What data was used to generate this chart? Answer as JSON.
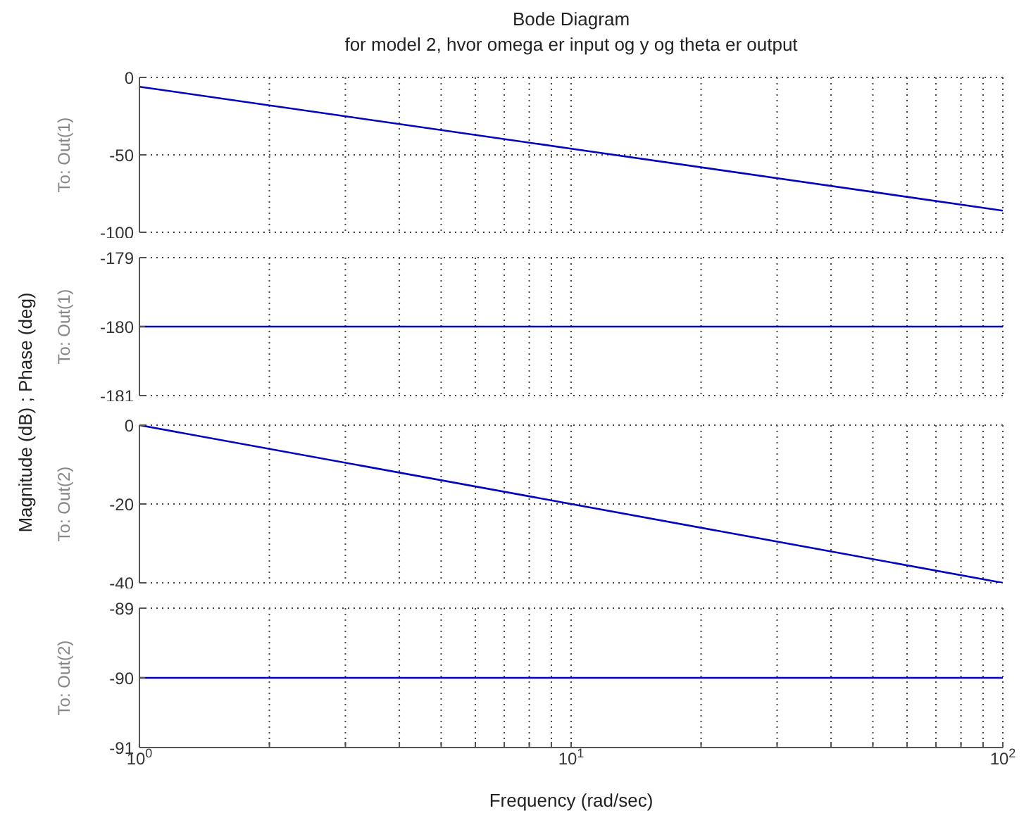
{
  "chart_data": [
    {
      "type": "line",
      "title": "Bode Diagram",
      "subtitle": "for model 2, hvor omega er input og y og theta er output",
      "annotations": [
        "Magnitude (dB) ; Phase (deg)"
      ],
      "ylabel": "To: Out(1)",
      "x": [
        1,
        10,
        100
      ],
      "series": [
        {
          "color": "#0000c0",
          "values": [
            -6,
            -46,
            -86
          ]
        }
      ],
      "log": "x",
      "xlim": [
        1,
        100
      ],
      "xticks": [
        {
          "value": 1,
          "label": null
        },
        {
          "value": 2,
          "label": null
        },
        {
          "value": 3,
          "label": null
        },
        {
          "value": 4,
          "label": null
        },
        {
          "value": 5,
          "label": null
        },
        {
          "value": 6,
          "label": null
        },
        {
          "value": 7,
          "label": null
        },
        {
          "value": 8,
          "label": null
        },
        {
          "value": 9,
          "label": null
        },
        {
          "value": 10,
          "label": null
        },
        {
          "value": 20,
          "label": null
        },
        {
          "value": 30,
          "label": null
        },
        {
          "value": 40,
          "label": null
        },
        {
          "value": 50,
          "label": null
        },
        {
          "value": 60,
          "label": null
        },
        {
          "value": 70,
          "label": null
        },
        {
          "value": 80,
          "label": null
        },
        {
          "value": 90,
          "label": null
        },
        {
          "value": 100,
          "label": null
        }
      ],
      "ylim": [
        -100,
        0
      ],
      "yticks": [
        -100,
        -50,
        0
      ],
      "grid": true,
      "tick_labels": "y"
    },
    {
      "type": "line",
      "ylabel": "To: Out(1)",
      "x": [
        1,
        100
      ],
      "series": [
        {
          "color": "#0000c0",
          "values": [
            -180,
            -180
          ]
        }
      ],
      "log": "x",
      "xlim": [
        1,
        100
      ],
      "xticks": [
        {
          "value": 1,
          "label": null
        },
        {
          "value": 2,
          "label": null
        },
        {
          "value": 3,
          "label": null
        },
        {
          "value": 4,
          "label": null
        },
        {
          "value": 5,
          "label": null
        },
        {
          "value": 6,
          "label": null
        },
        {
          "value": 7,
          "label": null
        },
        {
          "value": 8,
          "label": null
        },
        {
          "value": 9,
          "label": null
        },
        {
          "value": 10,
          "label": null
        },
        {
          "value": 20,
          "label": null
        },
        {
          "value": 30,
          "label": null
        },
        {
          "value": 40,
          "label": null
        },
        {
          "value": 50,
          "label": null
        },
        {
          "value": 60,
          "label": null
        },
        {
          "value": 70,
          "label": null
        },
        {
          "value": 80,
          "label": null
        },
        {
          "value": 90,
          "label": null
        },
        {
          "value": 100,
          "label": null
        }
      ],
      "ylim": [
        -181,
        -179
      ],
      "yticks": [
        -181,
        -180,
        -179
      ],
      "grid": true,
      "tick_labels": "y"
    },
    {
      "type": "line",
      "ylabel": "To: Out(2)",
      "x": [
        1,
        10,
        100
      ],
      "series": [
        {
          "color": "#0000c0",
          "values": [
            0,
            -20,
            -40
          ]
        }
      ],
      "log": "x",
      "xlim": [
        1,
        100
      ],
      "xticks": [
        {
          "value": 1,
          "label": null
        },
        {
          "value": 2,
          "label": null
        },
        {
          "value": 3,
          "label": null
        },
        {
          "value": 4,
          "label": null
        },
        {
          "value": 5,
          "label": null
        },
        {
          "value": 6,
          "label": null
        },
        {
          "value": 7,
          "label": null
        },
        {
          "value": 8,
          "label": null
        },
        {
          "value": 9,
          "label": null
        },
        {
          "value": 10,
          "label": null
        },
        {
          "value": 20,
          "label": null
        },
        {
          "value": 30,
          "label": null
        },
        {
          "value": 40,
          "label": null
        },
        {
          "value": 50,
          "label": null
        },
        {
          "value": 60,
          "label": null
        },
        {
          "value": 70,
          "label": null
        },
        {
          "value": 80,
          "label": null
        },
        {
          "value": 90,
          "label": null
        },
        {
          "value": 100,
          "label": null
        }
      ],
      "ylim": [
        -40,
        0
      ],
      "yticks": [
        -40,
        -20,
        0
      ],
      "grid": true,
      "tick_labels": "y"
    },
    {
      "type": "line",
      "ylabel": "To: Out(2)",
      "xlabel": "Frequency  (rad/sec)",
      "x": [
        1,
        100
      ],
      "series": [
        {
          "color": "#0000c0",
          "values": [
            -90,
            -90
          ]
        }
      ],
      "log": "x",
      "xlim": [
        1,
        100
      ],
      "xticks": [
        {
          "value": 1,
          "label": "10$^{0}$"
        },
        {
          "value": 2,
          "label": null
        },
        {
          "value": 3,
          "label": null
        },
        {
          "value": 4,
          "label": null
        },
        {
          "value": 5,
          "label": null
        },
        {
          "value": 6,
          "label": null
        },
        {
          "value": 7,
          "label": null
        },
        {
          "value": 8,
          "label": null
        },
        {
          "value": 9,
          "label": null
        },
        {
          "value": 10,
          "label": "10$^{1}$"
        },
        {
          "value": 20,
          "label": null
        },
        {
          "value": 30,
          "label": null
        },
        {
          "value": 40,
          "label": null
        },
        {
          "value": 50,
          "label": null
        },
        {
          "value": 60,
          "label": null
        },
        {
          "value": 70,
          "label": null
        },
        {
          "value": 80,
          "label": null
        },
        {
          "value": 90,
          "label": null
        },
        {
          "value": 100,
          "label": "10$^{2}$"
        }
      ],
      "ylim": [
        -91,
        -89
      ],
      "yticks": [
        -91,
        -90,
        -89
      ],
      "grid": true
    }
  ]
}
